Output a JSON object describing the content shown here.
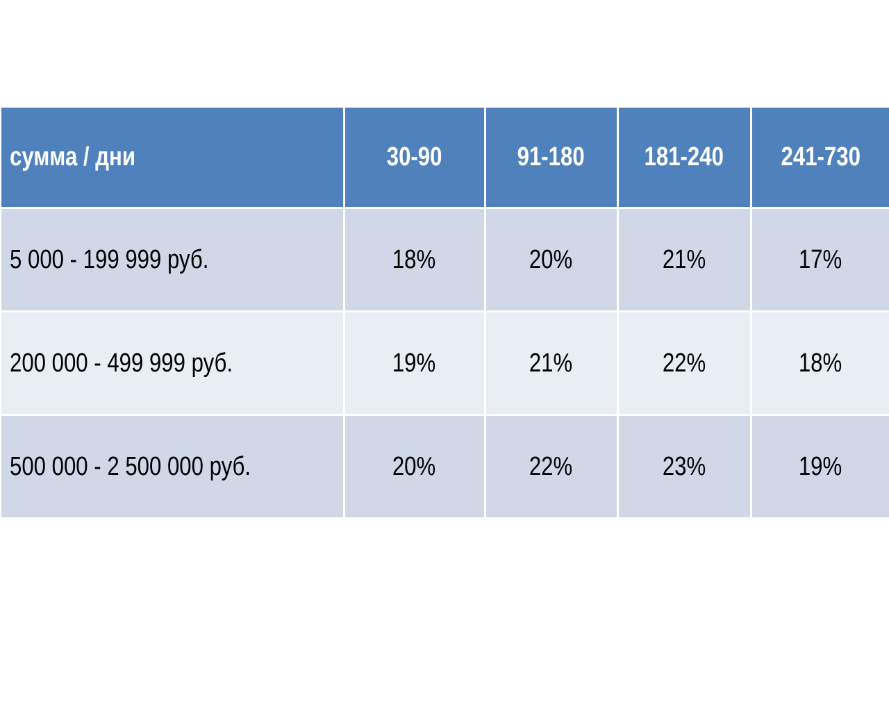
{
  "table": {
    "corner_label": "сумма / дни",
    "columns": [
      "30-90",
      "91-180",
      "181-240",
      "241-730"
    ],
    "rows": [
      {
        "label": "5 000 - 199 999 руб.",
        "values": [
          "18%",
          "20%",
          "21%",
          "17%"
        ]
      },
      {
        "label": "200 000 - 499 999 руб.",
        "values": [
          "19%",
          "21%",
          "22%",
          "18%"
        ]
      },
      {
        "label": "500 000 - 2 500 000 руб.",
        "values": [
          "20%",
          "22%",
          "23%",
          "19%"
        ]
      }
    ]
  },
  "colors": {
    "header_bg": "#4f81bd",
    "row_odd_bg": "#d0d8e8",
    "row_even_bg": "#e9edf4"
  }
}
